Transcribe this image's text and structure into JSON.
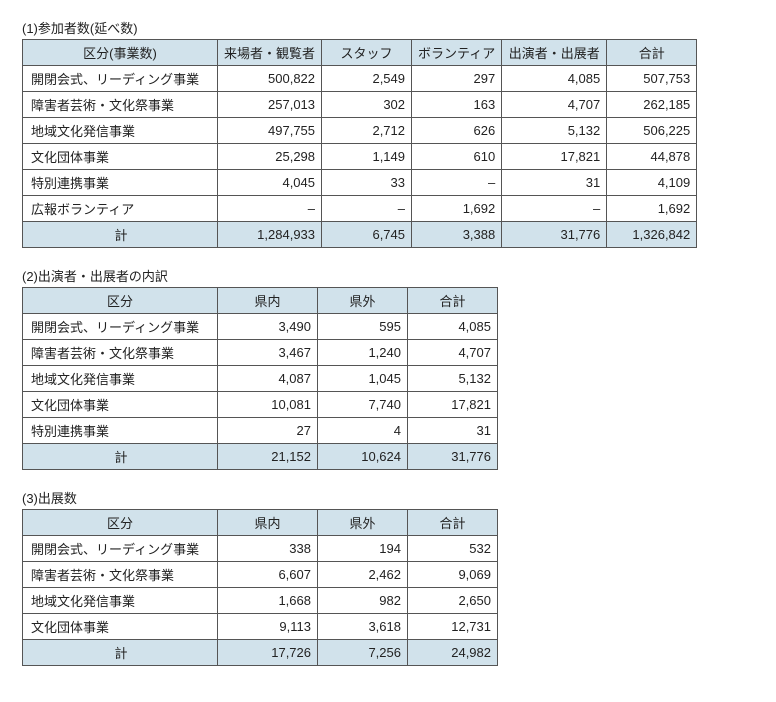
{
  "sections": [
    {
      "title": "(1)参加者数(延べ数)",
      "type": "t1",
      "headers": [
        "区分(事業数)",
        "来場者・観覧者",
        "スタッフ",
        "ボランティア",
        "出演者・出展者",
        "合計"
      ],
      "rows": [
        [
          "開閉会式、リーディング事業",
          "500,822",
          "2,549",
          "297",
          "4,085",
          "507,753"
        ],
        [
          "障害者芸術・文化祭事業",
          "257,013",
          "302",
          "163",
          "4,707",
          "262,185"
        ],
        [
          "地域文化発信事業",
          "497,755",
          "2,712",
          "626",
          "5,132",
          "506,225"
        ],
        [
          "文化団体事業",
          "25,298",
          "1,149",
          "610",
          "17,821",
          "44,878"
        ],
        [
          "特別連携事業",
          "4,045",
          "33",
          "–",
          "31",
          "4,109"
        ],
        [
          "広報ボランティア",
          "–",
          "–",
          "1,692",
          "–",
          "1,692"
        ]
      ],
      "total": [
        "計",
        "1,284,933",
        "6,745",
        "3,388",
        "31,776",
        "1,326,842"
      ]
    },
    {
      "title": "(2)出演者・出展者の内訳",
      "type": "t23",
      "headers": [
        "区分",
        "県内",
        "県外",
        "合計"
      ],
      "rows": [
        [
          "開閉会式、リーディング事業",
          "3,490",
          "595",
          "4,085"
        ],
        [
          "障害者芸術・文化祭事業",
          "3,467",
          "1,240",
          "4,707"
        ],
        [
          "地域文化発信事業",
          "4,087",
          "1,045",
          "5,132"
        ],
        [
          "文化団体事業",
          "10,081",
          "7,740",
          "17,821"
        ],
        [
          "特別連携事業",
          "27",
          "4",
          "31"
        ]
      ],
      "total": [
        "計",
        "21,152",
        "10,624",
        "31,776"
      ]
    },
    {
      "title": "(3)出展数",
      "type": "t23",
      "headers": [
        "区分",
        "県内",
        "県外",
        "合計"
      ],
      "rows": [
        [
          "開閉会式、リーディング事業",
          "338",
          "194",
          "532"
        ],
        [
          "障害者芸術・文化祭事業",
          "6,607",
          "2,462",
          "9,069"
        ],
        [
          "地域文化発信事業",
          "1,668",
          "982",
          "2,650"
        ],
        [
          "文化団体事業",
          "9,113",
          "3,618",
          "12,731"
        ]
      ],
      "total": [
        "計",
        "17,726",
        "7,256",
        "24,982"
      ]
    }
  ]
}
